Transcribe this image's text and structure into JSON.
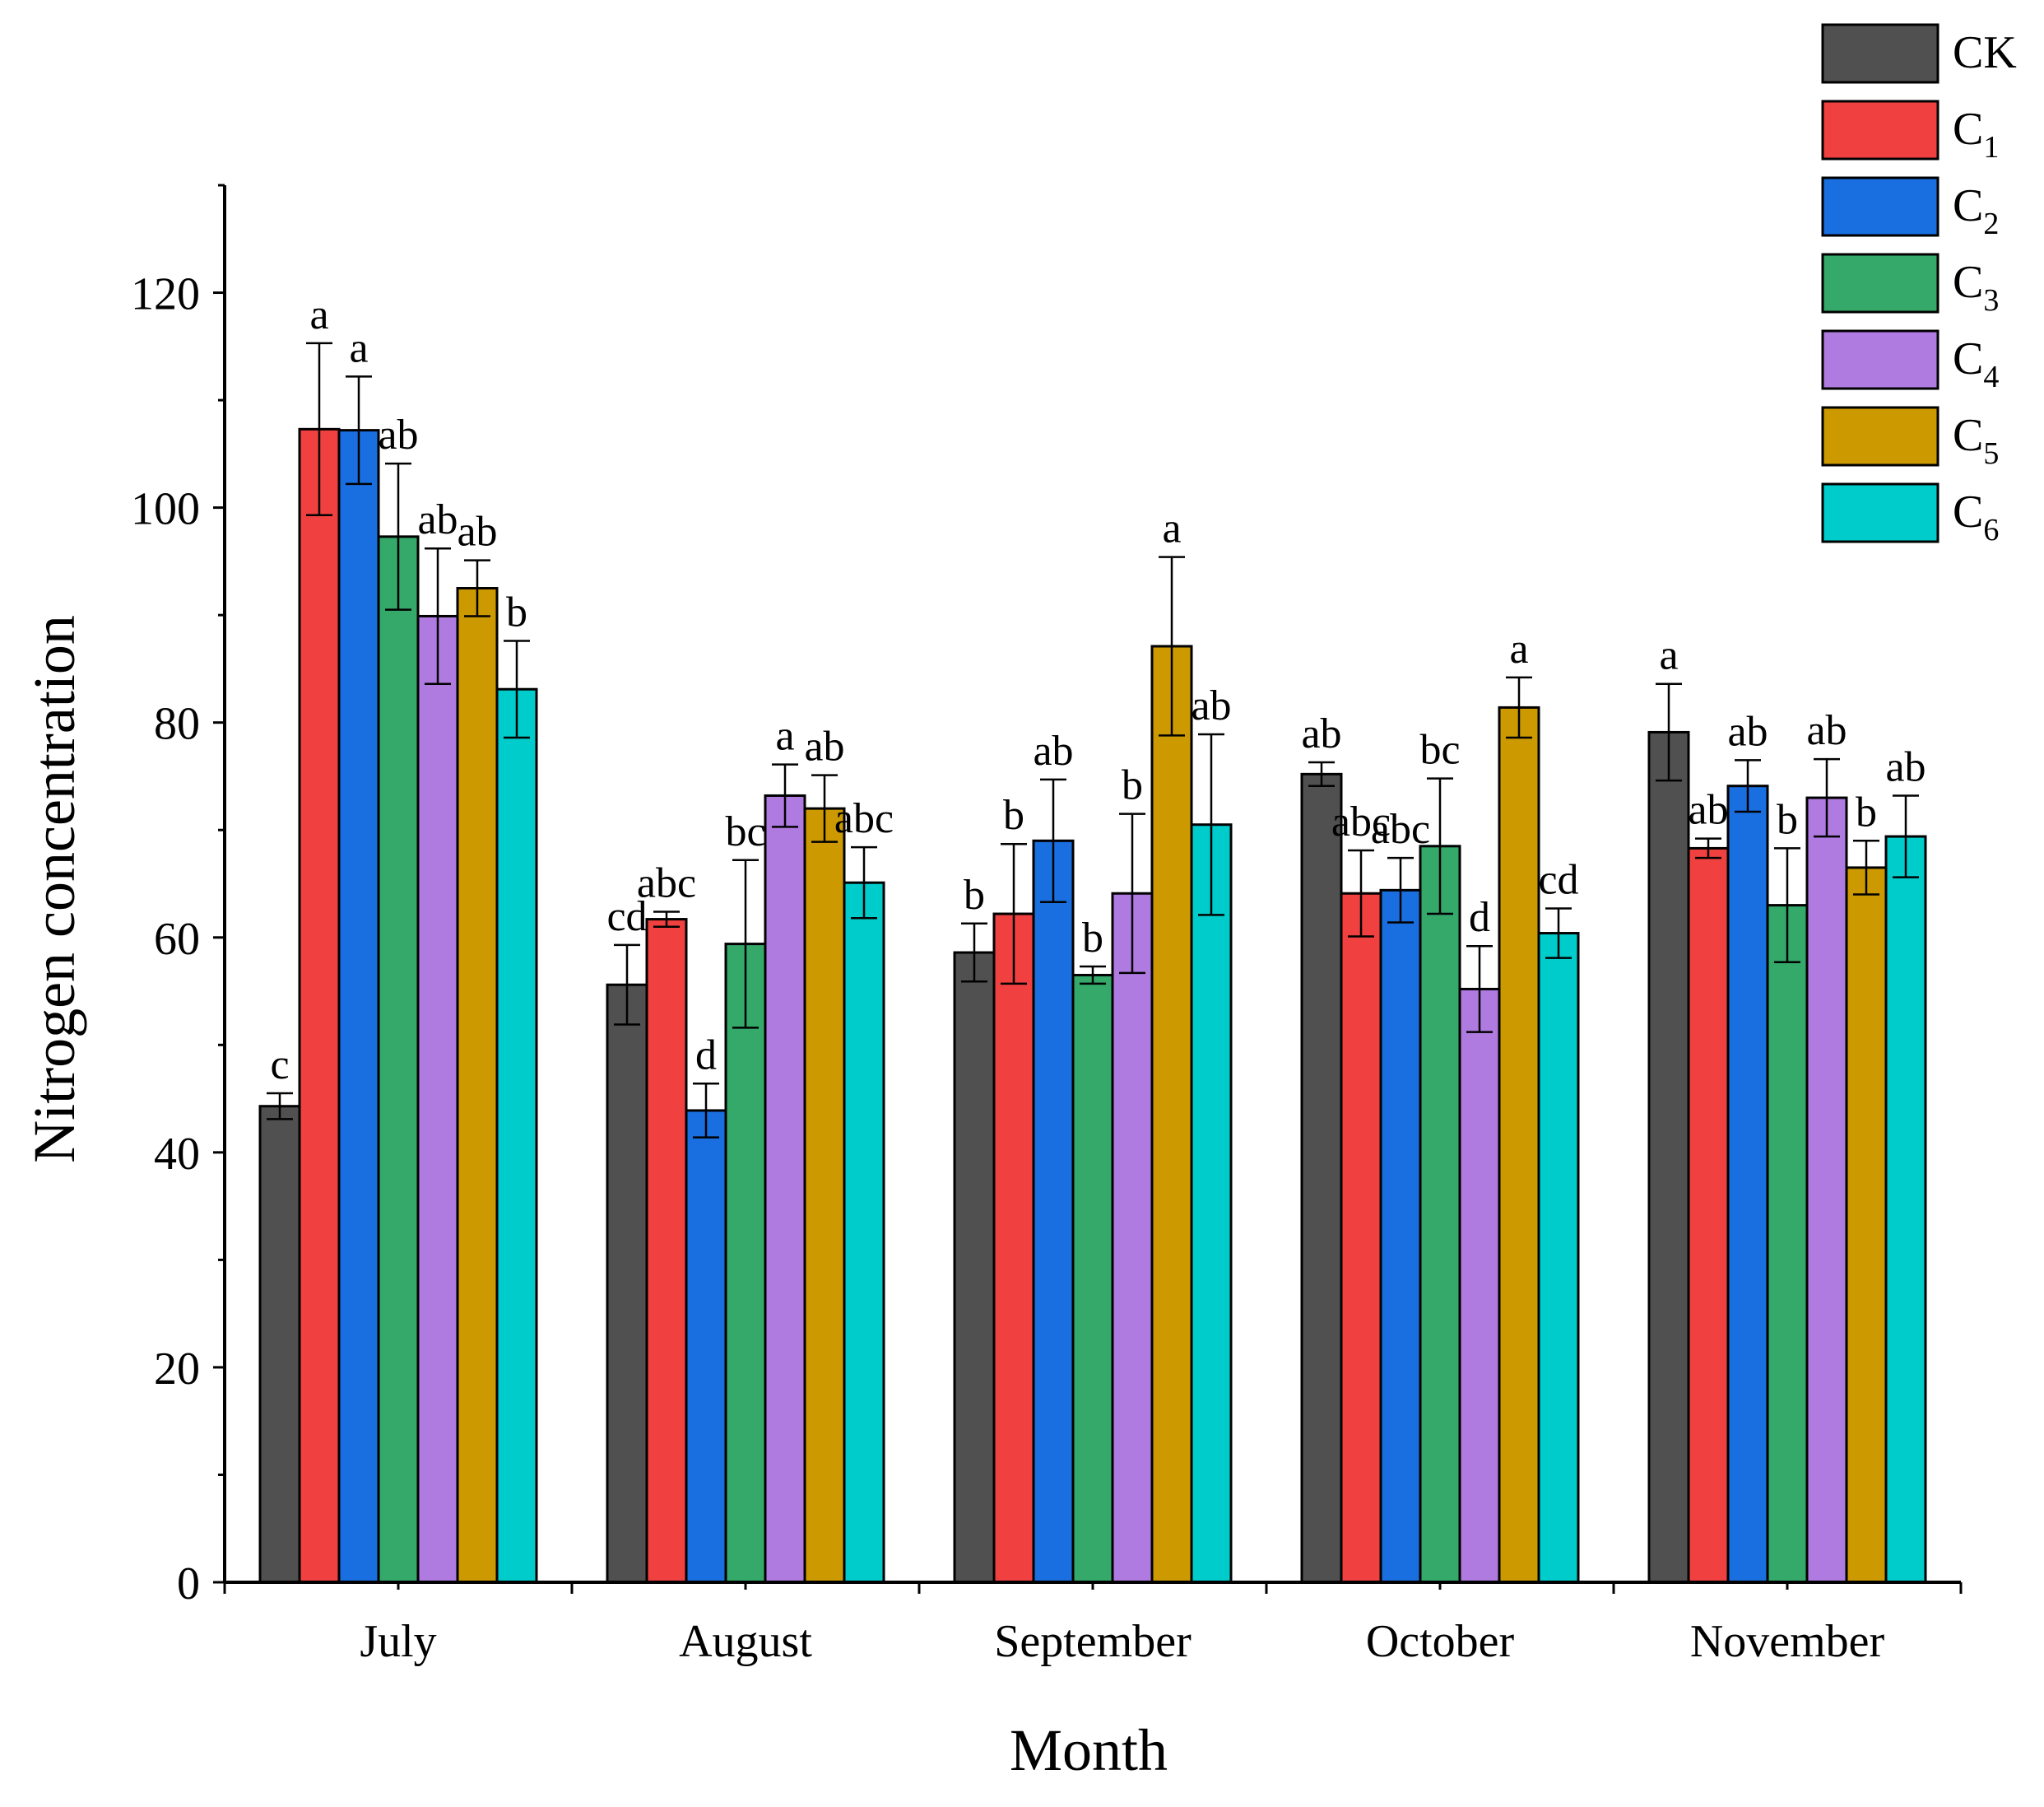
{
  "chart_data": {
    "type": "bar",
    "title": "",
    "xlabel": "Month",
    "ylabel": "Nitrogen concentration",
    "ylim": [
      0,
      130
    ],
    "yticks": [
      0,
      20,
      40,
      60,
      80,
      100,
      120
    ],
    "ytick_labels": [
      "0",
      "20",
      "40",
      "60",
      "80",
      "100",
      "120"
    ],
    "grid": false,
    "legend_position": "top-right",
    "categories": [
      "July",
      "August",
      "September",
      "October",
      "November"
    ],
    "series": [
      {
        "name": "CK",
        "label_main": "CK",
        "label_sub": "",
        "color": "#505050",
        "values": [
          44.3,
          55.6,
          58.6,
          75.2,
          79.1
        ],
        "errors": [
          1.2,
          3.7,
          2.7,
          1.1,
          4.5
        ],
        "labels": [
          "c",
          "cd",
          "b",
          "ab",
          "a"
        ]
      },
      {
        "name": "C1",
        "label_main": "C",
        "label_sub": "1",
        "color": "#f04040",
        "values": [
          107.3,
          61.7,
          62.2,
          64.1,
          68.3
        ],
        "errors": [
          8.0,
          0.7,
          6.5,
          4.0,
          0.9
        ],
        "labels": [
          "a",
          "abc",
          "b",
          "abc",
          "ab"
        ]
      },
      {
        "name": "C2",
        "label_main": "C",
        "label_sub": "2",
        "color": "#1a6fe0",
        "values": [
          107.2,
          43.9,
          69.0,
          64.4,
          74.1
        ],
        "errors": [
          5.0,
          2.5,
          5.7,
          3.0,
          2.4
        ],
        "labels": [
          "a",
          "d",
          "ab",
          "abc",
          "ab"
        ]
      },
      {
        "name": "C3",
        "label_main": "C",
        "label_sub": "3",
        "color": "#35a96a",
        "values": [
          97.3,
          59.4,
          56.5,
          68.5,
          63.0
        ],
        "errors": [
          6.8,
          7.8,
          0.8,
          6.3,
          5.3
        ],
        "labels": [
          "ab",
          "bc",
          "b",
          "bc",
          "b"
        ]
      },
      {
        "name": "C4",
        "label_main": "C",
        "label_sub": "4",
        "color": "#b07be0",
        "values": [
          89.9,
          73.2,
          64.1,
          55.2,
          73.0
        ],
        "errors": [
          6.3,
          2.9,
          7.4,
          4.0,
          3.6
        ],
        "labels": [
          "ab",
          "a",
          "b",
          "d",
          "ab"
        ]
      },
      {
        "name": "C5",
        "label_main": "C",
        "label_sub": "5",
        "color": "#cc9a00",
        "values": [
          92.5,
          72.0,
          87.1,
          81.4,
          66.5
        ],
        "errors": [
          2.6,
          3.1,
          8.3,
          2.8,
          2.5
        ],
        "labels": [
          "ab",
          "ab",
          "a",
          "a",
          "b"
        ]
      },
      {
        "name": "C6",
        "label_main": "C",
        "label_sub": "6",
        "color": "#00cccc",
        "values": [
          83.1,
          65.1,
          70.5,
          60.4,
          69.4
        ],
        "errors": [
          4.5,
          3.3,
          8.4,
          2.3,
          3.8
        ],
        "labels": [
          "b",
          "abc",
          "ab",
          "cd",
          "ab"
        ]
      }
    ]
  }
}
